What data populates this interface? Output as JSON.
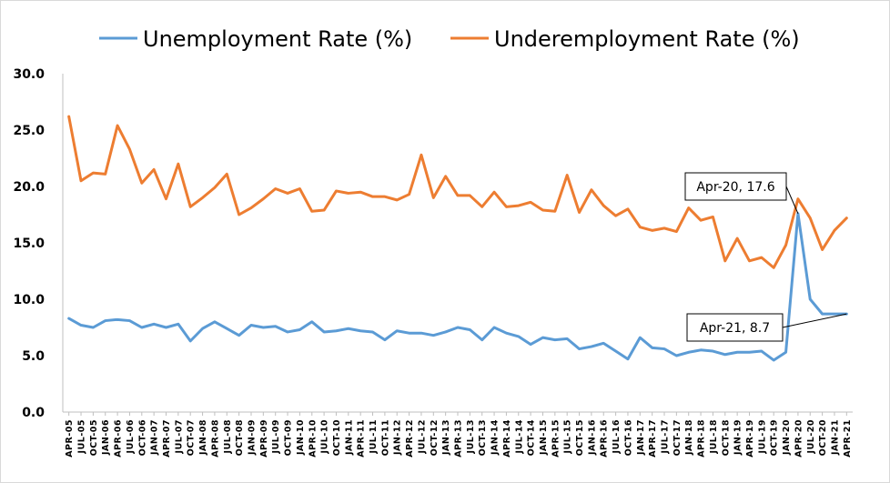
{
  "chart_data": {
    "type": "line",
    "title": "",
    "xlabel": "",
    "ylabel": "",
    "ylim": [
      0,
      30
    ],
    "yticks": [
      "0.0",
      "5.0",
      "10.0",
      "15.0",
      "20.0",
      "25.0",
      "30.0"
    ],
    "grid": false,
    "legend_position": "top",
    "categories": [
      "APR-05",
      "JUL-05",
      "OCT-05",
      "JAN-06",
      "APR-06",
      "JUL-06",
      "OCT-06",
      "JAN-07",
      "APR-07",
      "JUL-07",
      "OCT-07",
      "JAN-08",
      "APR-08",
      "JUL-08",
      "OCT-08",
      "JAN-09",
      "APR-09",
      "JUL-09",
      "OCT-09",
      "JAN-10",
      "APR-10",
      "JUL-10",
      "OCT-10",
      "JAN-11",
      "APR-11",
      "JUL-11",
      "OCT-11",
      "JAN-12",
      "APR-12",
      "JUL-12",
      "OCT-12",
      "JAN-13",
      "APR-13",
      "JUL-13",
      "OCT-13",
      "JAN-14",
      "APR-14",
      "JUL-14",
      "OCT-14",
      "JAN-15",
      "APR-15",
      "JUL-15",
      "OCT-15",
      "JAN-16",
      "APR-16",
      "JUL-16",
      "OCT-16",
      "JAN-17",
      "APR-17",
      "JUL-17",
      "OCT-17",
      "JAN-18",
      "APR-18",
      "JUL-18",
      "OCT-18",
      "JAN-19",
      "APR-19",
      "JUL-19",
      "OCT-19",
      "JAN-20",
      "APR-20",
      "JUL-20",
      "OCT-20",
      "JAN-21",
      "APR-21"
    ],
    "series": [
      {
        "name": "Unemployment Rate (%)",
        "color": "#5B9BD5",
        "values": [
          8.3,
          7.7,
          7.5,
          8.1,
          8.2,
          8.1,
          7.5,
          7.8,
          7.5,
          7.8,
          6.3,
          7.4,
          8.0,
          7.4,
          6.8,
          7.7,
          7.5,
          7.6,
          7.1,
          7.3,
          8.0,
          7.1,
          7.2,
          7.4,
          7.2,
          7.1,
          6.4,
          7.2,
          7.0,
          7.0,
          6.8,
          7.1,
          7.5,
          7.3,
          6.4,
          7.5,
          7.0,
          6.7,
          6.0,
          6.6,
          6.4,
          6.5,
          5.6,
          5.8,
          6.1,
          5.4,
          4.7,
          6.6,
          5.7,
          5.6,
          5.0,
          5.3,
          5.5,
          5.4,
          5.1,
          5.3,
          5.3,
          5.4,
          4.6,
          5.3,
          17.6,
          10.0,
          8.7,
          8.7,
          8.7
        ]
      },
      {
        "name": "Underemployment Rate (%)",
        "color": "#ED7D31",
        "values": [
          26.2,
          20.5,
          21.2,
          21.1,
          25.4,
          23.3,
          20.3,
          21.5,
          18.9,
          22.0,
          18.2,
          19.0,
          19.9,
          21.1,
          17.5,
          18.1,
          18.9,
          19.8,
          19.4,
          19.8,
          17.8,
          17.9,
          19.6,
          19.4,
          19.5,
          19.1,
          19.1,
          18.8,
          19.3,
          22.8,
          19.0,
          20.9,
          19.2,
          19.2,
          18.2,
          19.5,
          18.2,
          18.3,
          18.6,
          17.9,
          17.8,
          21.0,
          17.7,
          19.7,
          18.3,
          17.4,
          18.0,
          16.4,
          16.1,
          16.3,
          16.0,
          18.1,
          17.0,
          17.3,
          13.4,
          15.4,
          13.4,
          13.7,
          12.8,
          14.8,
          18.9,
          17.2,
          14.4,
          16.1,
          17.2
        ]
      }
    ],
    "annotations": [
      {
        "label": "Apr-20, 17.6",
        "category": "APR-20",
        "series": 0
      },
      {
        "label": "Apr-21, 8.7",
        "category": "APR-21",
        "series": 0
      }
    ]
  }
}
